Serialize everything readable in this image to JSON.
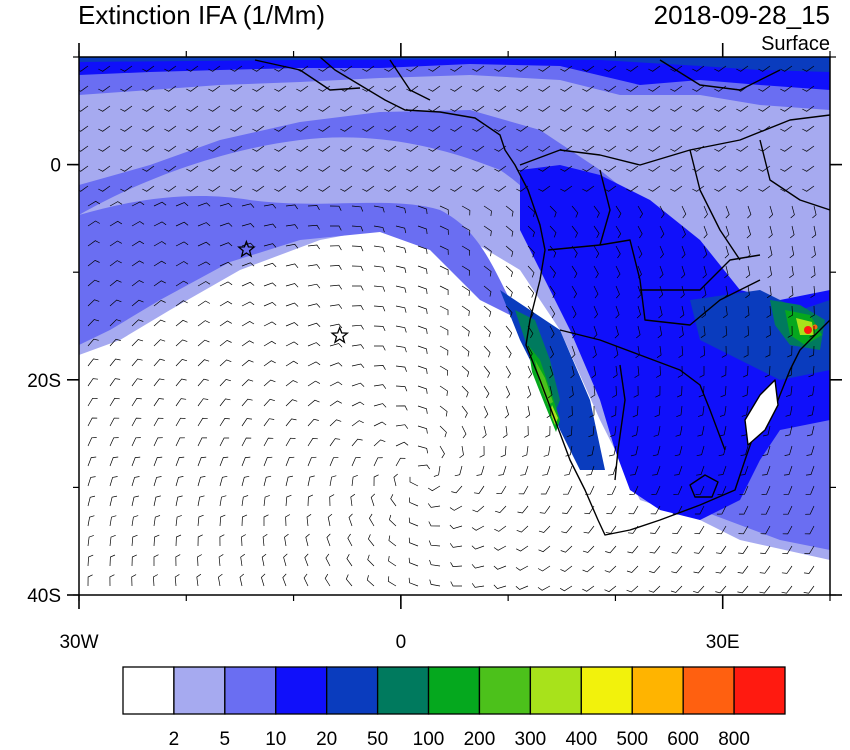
{
  "header": {
    "title": "Extinction IFA (1/Mm)",
    "datetime": "2018-09-28_15",
    "level": "Surface"
  },
  "map": {
    "lon_range": [
      -30,
      40
    ],
    "lat_range": [
      -40,
      10
    ],
    "lat_ticks": [
      {
        "value": 0,
        "label": "0"
      },
      {
        "value": -20,
        "label": "20S"
      },
      {
        "value": -40,
        "label": "40S"
      }
    ],
    "lon_ticks": [
      {
        "value": -30,
        "label": "30W"
      },
      {
        "value": 0,
        "label": "0"
      },
      {
        "value": 30,
        "label": "30E"
      }
    ],
    "markers": [
      {
        "name": "star",
        "lon": -14.4,
        "lat": -7.9
      },
      {
        "name": "star",
        "lon": -5.7,
        "lat": -15.9
      }
    ]
  },
  "colorbar": {
    "colors": [
      "#ffffff",
      "#a6aaf0",
      "#6a6ef2",
      "#1010fa",
      "#0a3cbe",
      "#007a5e",
      "#05a81e",
      "#4cc11b",
      "#a8e21b",
      "#f2f20c",
      "#ffb400",
      "#ff6010",
      "#ff1a10"
    ],
    "labels": [
      "2",
      "5",
      "10",
      "20",
      "50",
      "100",
      "200",
      "300",
      "400",
      "500",
      "600",
      "800"
    ]
  }
}
